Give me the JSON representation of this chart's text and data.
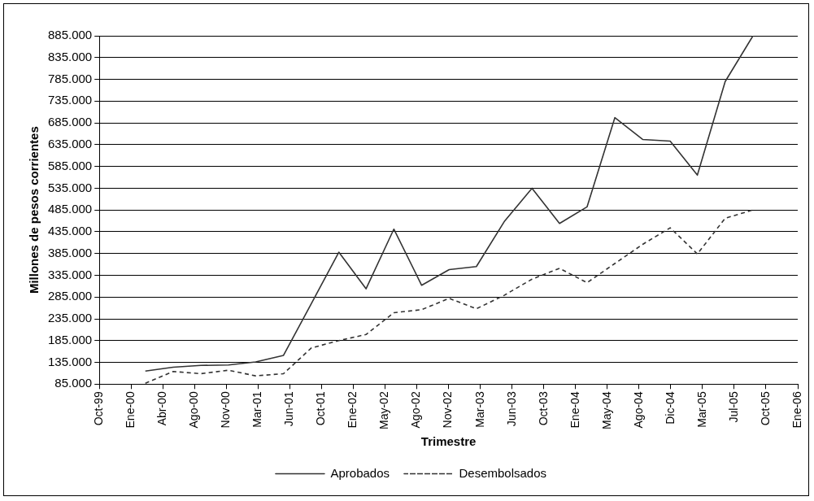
{
  "chart_data": {
    "type": "line",
    "xlabel": "Trimestre",
    "ylabel": "Millones de pesos corrientes",
    "x": [
      "2000-03-01",
      "2000-06-01",
      "2000-09-01",
      "2000-12-01",
      "2001-03-01",
      "2001-06-01",
      "2001-09-01",
      "2001-12-01",
      "2002-03-01",
      "2002-06-01",
      "2002-09-01",
      "2002-12-01",
      "2003-03-01",
      "2003-06-01",
      "2003-09-01",
      "2003-12-01",
      "2004-03-01",
      "2004-06-01",
      "2004-09-01",
      "2004-12-01",
      "2005-03-01",
      "2005-06-01",
      "2005-09-01"
    ],
    "series": [
      {
        "name": "Aprobados",
        "color": "#333333",
        "line_style": "solid",
        "values": [
          115000,
          124000,
          128000,
          129000,
          136000,
          151000,
          270000,
          388000,
          304000,
          441000,
          312000,
          348000,
          355000,
          458000,
          535000,
          454000,
          492000,
          697000,
          647000,
          643000,
          565000,
          780000,
          885000
        ]
      },
      {
        "name": "Desembolsados",
        "color": "#333333",
        "line_style": "dashed",
        "values": [
          87000,
          114000,
          109000,
          117000,
          104000,
          109000,
          168000,
          185000,
          199000,
          249000,
          256000,
          282000,
          258000,
          289000,
          326000,
          351000,
          318000,
          362000,
          406000,
          444000,
          384000,
          466000,
          485000
        ]
      }
    ],
    "xlim": [
      "1999-10-01",
      "2006-01-27"
    ],
    "xticks": [
      {
        "value": "1999-10-01",
        "label": "Oct-99"
      },
      {
        "value": "2000-01-14",
        "label": "Ene-00"
      },
      {
        "value": "2000-04-28",
        "label": "Abr-00"
      },
      {
        "value": "2000-08-11",
        "label": "Ago-00"
      },
      {
        "value": "2000-11-24",
        "label": "Nov-00"
      },
      {
        "value": "2001-03-09",
        "label": "Mar-01"
      },
      {
        "value": "2001-06-22",
        "label": "Jun-01"
      },
      {
        "value": "2001-10-05",
        "label": "Oct-01"
      },
      {
        "value": "2002-01-18",
        "label": "Ene-02"
      },
      {
        "value": "2002-05-03",
        "label": "May-02"
      },
      {
        "value": "2002-08-16",
        "label": "Ago-02"
      },
      {
        "value": "2002-11-29",
        "label": "Nov-02"
      },
      {
        "value": "2003-03-14",
        "label": "Mar-03"
      },
      {
        "value": "2003-06-27",
        "label": "Jun-03"
      },
      {
        "value": "2003-10-10",
        "label": "Oct-03"
      },
      {
        "value": "2004-01-23",
        "label": "Ene-04"
      },
      {
        "value": "2004-05-07",
        "label": "May-04"
      },
      {
        "value": "2004-08-20",
        "label": "Ago-04"
      },
      {
        "value": "2004-12-03",
        "label": "Dic-04"
      },
      {
        "value": "2005-03-18",
        "label": "Mar-05"
      },
      {
        "value": "2005-07-01",
        "label": "Jul-05"
      },
      {
        "value": "2005-10-14",
        "label": "Oct-05"
      },
      {
        "value": "2006-01-27",
        "label": "Ene-06"
      }
    ],
    "ylim": [
      85000,
      885000
    ],
    "yticks": [
      {
        "value": 85000,
        "label": "85.000"
      },
      {
        "value": 135000,
        "label": "135.000"
      },
      {
        "value": 185000,
        "label": "185.000"
      },
      {
        "value": 235000,
        "label": "235.000"
      },
      {
        "value": 285000,
        "label": "285.000"
      },
      {
        "value": 335000,
        "label": "335.000"
      },
      {
        "value": 385000,
        "label": "385.000"
      },
      {
        "value": 435000,
        "label": "435.000"
      },
      {
        "value": 485000,
        "label": "485.000"
      },
      {
        "value": 535000,
        "label": "535.000"
      },
      {
        "value": 585000,
        "label": "585.000"
      },
      {
        "value": 635000,
        "label": "635.000"
      },
      {
        "value": 685000,
        "label": "685.000"
      },
      {
        "value": 735000,
        "label": "735.000"
      },
      {
        "value": 785000,
        "label": "785.000"
      },
      {
        "value": 835000,
        "label": "835.000"
      },
      {
        "value": 885000,
        "label": "885.000"
      }
    ],
    "grid": "y",
    "legend": "bottom",
    "marker": "none"
  }
}
